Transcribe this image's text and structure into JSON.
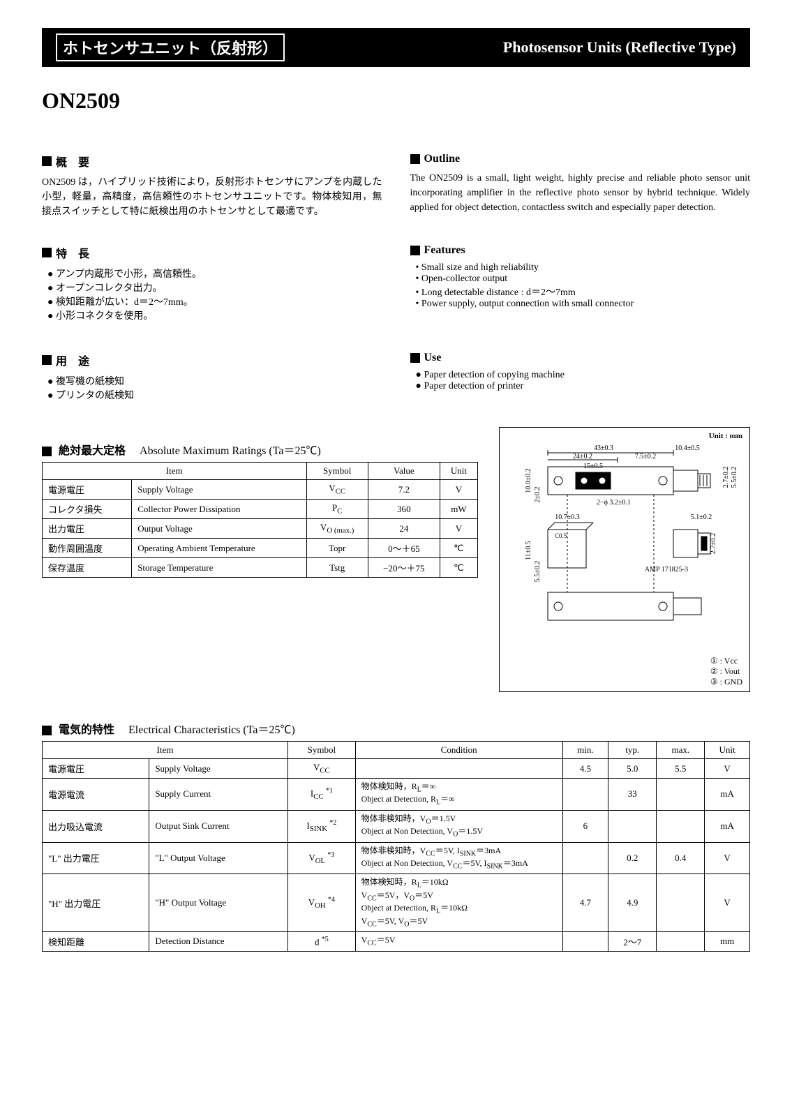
{
  "header": {
    "jp": "ホトセンサユニット（反射形）",
    "en": "Photosensor Units (Reflective Type)"
  },
  "product": "ON2509",
  "outline_jp": {
    "title": "概　要",
    "text": "ON2509 は，ハイブリッド技術により，反射形ホトセンサにアンプを内蔵した小型，軽量，高精度，高信頼性のホトセンサユニットです。物体検知用，無接点スイッチとして特に紙検出用のホトセンサとして最適です。"
  },
  "outline_en": {
    "title": "Outline",
    "text": "The ON2509 is a small, light weight, highly precise and reliable photo sensor unit incorporating amplifier in the reflective photo sensor by hybrid technique. Widely applied for object detection, contactless switch and especially paper detection."
  },
  "features_jp": {
    "title": "特　長",
    "items": [
      "アンプ内蔵形で小形，高信頼性。",
      "オープンコレクタ出力。",
      "検知距離が広い：d＝2～7mm。",
      "小形コネクタを使用。"
    ]
  },
  "features_en": {
    "title": "Features",
    "items": [
      "Small size and high reliability",
      "Open-collector output",
      "Long detectable distance : d＝2～7mm",
      "Power supply, output connection with small connector"
    ]
  },
  "use_jp": {
    "title": "用　途",
    "items": [
      "複写機の紙検知",
      "プリンタの紙検知"
    ]
  },
  "use_en": {
    "title": "Use",
    "items": [
      "Paper detection of copying machine",
      "Paper detection of printer"
    ]
  },
  "abs_max": {
    "title_jp": "絶対最大定格",
    "title_en": "Absolute Maximum Ratings (Ta＝25℃)",
    "headers": {
      "item": "Item",
      "symbol": "Symbol",
      "value": "Value",
      "unit": "Unit"
    },
    "rows": [
      {
        "jp": "電源電圧",
        "en": "Supply Voltage",
        "symbol": "V_CC",
        "value": "7.2",
        "unit": "V"
      },
      {
        "jp": "コレクタ損失",
        "en": "Collector Power Dissipation",
        "symbol": "P_C",
        "value": "360",
        "unit": "mW"
      },
      {
        "jp": "出力電圧",
        "en": "Output Voltage",
        "symbol": "V_O (max.)",
        "value": "24",
        "unit": "V"
      },
      {
        "jp": "動作周囲温度",
        "en": "Operating Ambient Temperature",
        "symbol": "Topr",
        "value": "0～＋65",
        "unit": "℃"
      },
      {
        "jp": "保存温度",
        "en": "Storage Temperature",
        "symbol": "Tstg",
        "value": "−20～＋75",
        "unit": "℃"
      }
    ]
  },
  "diagram": {
    "unit_label": "Unit : mm",
    "dims": {
      "w_total": "43±0.3",
      "w_left": "24±0.2",
      "w_right": "7.5±0.2",
      "w_tab": "10.4±0.5",
      "w_inner": "15±0.5",
      "h_top": "10.0±0.2",
      "h_lip": "2±0.2",
      "slit": "2−ϕ 3.2±0.1",
      "body_w": "10.7±0.3",
      "body_h": "11±0.5",
      "body_d": "5.5±0.2",
      "chamfer": "C0.5",
      "conn_h": "5.1±0.2",
      "conn_w": "2.7±0.2",
      "thk1": "2.7±0.2",
      "thk2": "5.5±0.2",
      "amp_label": "AMP 171825-3"
    },
    "pins": {
      "p1": "① : Vcc",
      "p2": "② : Vout",
      "p3": "③ : GND"
    }
  },
  "elec": {
    "title_jp": "電気的特性",
    "title_en": "Electrical Characteristics (Ta＝25℃)",
    "headers": {
      "item": "Item",
      "symbol": "Symbol",
      "condition": "Condition",
      "min": "min.",
      "typ": "typ.",
      "max": "max.",
      "unit": "Unit"
    },
    "rows": [
      {
        "jp": "電源電圧",
        "en": "Supply Voltage",
        "symbol": "V_CC",
        "note": "",
        "cond": "",
        "min": "4.5",
        "typ": "5.0",
        "max": "5.5",
        "unit": "V"
      },
      {
        "jp": "電源電流",
        "en": "Supply Current",
        "symbol": "I_CC",
        "note": "*1",
        "cond": "物体検知時，R_L＝∞\nObject at Detection, R_L＝∞",
        "min": "",
        "typ": "33",
        "max": "",
        "unit": "mA"
      },
      {
        "jp": "出力吸込電流",
        "en": "Output Sink Current",
        "symbol": "I_SINK",
        "note": "*2",
        "cond": "物体非検知時，V_O＝1.5V\nObject at Non Detection, V_O＝1.5V",
        "min": "6",
        "typ": "",
        "max": "",
        "unit": "mA"
      },
      {
        "jp": "\"L\" 出力電圧",
        "en": "\"L\" Output Voltage",
        "symbol": "V_OL",
        "note": "*3",
        "cond": "物体非検知時，V_CC＝5V, I_SINK＝3mA\nObject at Non Detection, V_CC＝5V, I_SINK＝3mA",
        "min": "",
        "typ": "0.2",
        "max": "0.4",
        "unit": "V"
      },
      {
        "jp": "\"H\" 出力電圧",
        "en": "\"H\" Output Voltage",
        "symbol": "V_OH",
        "note": "*4",
        "cond": "物体検知時，R_L＝10kΩ\nV_CC＝5V，V_O＝5V\nObject at Detection, R_L＝10kΩ\nV_CC＝5V, V_O＝5V",
        "min": "4.7",
        "typ": "4.9",
        "max": "",
        "unit": "V"
      },
      {
        "jp": "検知距離",
        "en": "Detection Distance",
        "symbol": "d",
        "note": "*5",
        "cond": "V_CC＝5V",
        "min": "",
        "typ": "2～7",
        "max": "",
        "unit": "mm"
      }
    ]
  }
}
